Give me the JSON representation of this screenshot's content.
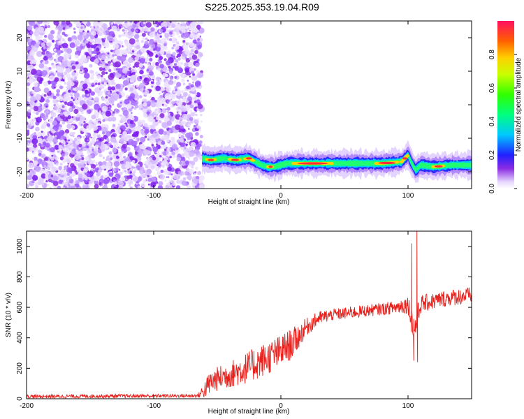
{
  "title": "S225.2025.353.19.04.R09",
  "chart_data": [
    {
      "type": "heatmap",
      "xlabel": "Height of straight line (km)",
      "ylabel": "Frequency (Hz)",
      "xlim": [
        -200,
        150
      ],
      "ylim": [
        -25,
        25
      ],
      "xticks": [
        -200,
        -100,
        0,
        100
      ],
      "yticks": [
        -20,
        -10,
        0,
        10,
        20
      ],
      "colorbar": {
        "label": "Normalized spectral amplitude",
        "range": [
          0,
          1
        ],
        "ticks": [
          "0.0",
          "0.2",
          "0.4",
          "0.6",
          "0.8"
        ]
      },
      "noise_region": {
        "x_from": -200,
        "x_to": -62,
        "freq_from": -25,
        "freq_to": 25
      },
      "signal_track": {
        "x": [
          -62,
          -55,
          -45,
          -35,
          -25,
          -20,
          -15,
          -10,
          -5,
          0,
          5,
          10,
          20,
          40,
          60,
          80,
          95,
          100,
          103,
          106,
          110,
          120,
          135,
          150
        ],
        "freq": [
          -16,
          -16.5,
          -16,
          -16.5,
          -16,
          -17,
          -18,
          -18.5,
          -18.5,
          -18,
          -17.5,
          -17.5,
          -17.5,
          -17.5,
          -17.5,
          -17.5,
          -17,
          -15,
          -17.5,
          -19.5,
          -18,
          -18.5,
          -18,
          -18
        ]
      }
    },
    {
      "type": "line",
      "xlabel": "Height of straight line (km)",
      "ylabel": "SNR (10 * v/v)",
      "xlim": [
        -200,
        150
      ],
      "ylim": [
        0,
        1100
      ],
      "xticks": [
        -200,
        -100,
        0,
        100
      ],
      "yticks": [
        0,
        200,
        400,
        600,
        800,
        1000
      ],
      "color": "#e8201c",
      "envelope": {
        "x": [
          -200,
          -65,
          -60,
          -55,
          -50,
          -40,
          -30,
          -20,
          -10,
          0,
          10,
          20,
          30,
          40,
          50,
          60,
          70,
          80,
          90,
          100,
          105,
          110,
          120,
          130,
          140,
          150
        ],
        "mean": [
          15,
          20,
          60,
          110,
          130,
          160,
          190,
          230,
          270,
          310,
          370,
          470,
          530,
          550,
          560,
          570,
          580,
          590,
          600,
          620,
          450,
          620,
          640,
          660,
          670,
          680
        ],
        "jitter": [
          12,
          12,
          60,
          80,
          80,
          90,
          100,
          110,
          110,
          110,
          100,
          60,
          45,
          40,
          40,
          40,
          40,
          40,
          45,
          60,
          120,
          60,
          55,
          55,
          55,
          55
        ]
      },
      "spikes": [
        {
          "x": 103,
          "y": 1020
        },
        {
          "x": 104.5,
          "y": 250
        },
        {
          "x": 107,
          "y": 1100
        },
        {
          "x": 107.5,
          "y": 240
        }
      ]
    }
  ]
}
